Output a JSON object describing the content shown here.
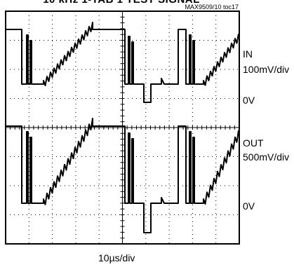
{
  "chart_data": {
    "type": "line",
    "title": "10 kHz 1-TAB 1 TEST SIGNAL",
    "code": "MAX9509/10 toc17",
    "xlabel": "10µs/div",
    "grid": true,
    "x_divisions": 10,
    "y_divisions": 8,
    "channels": [
      {
        "name": "IN",
        "scale": "100mV/div",
        "ground_label": "0V"
      },
      {
        "name": "OUT",
        "scale": "500mV/div",
        "ground_label": "0V"
      }
    ]
  },
  "ui": {
    "title": "10 kHz 1-TAB 1 TEST SIGNAL",
    "code": "MAX9509/10 toc17",
    "in_name": "IN",
    "in_scale": "100mV/div",
    "in_zero": "0V",
    "out_name": "OUT",
    "out_scale": "500mV/div",
    "out_zero": "0V",
    "time_scale": "10µs/div"
  }
}
